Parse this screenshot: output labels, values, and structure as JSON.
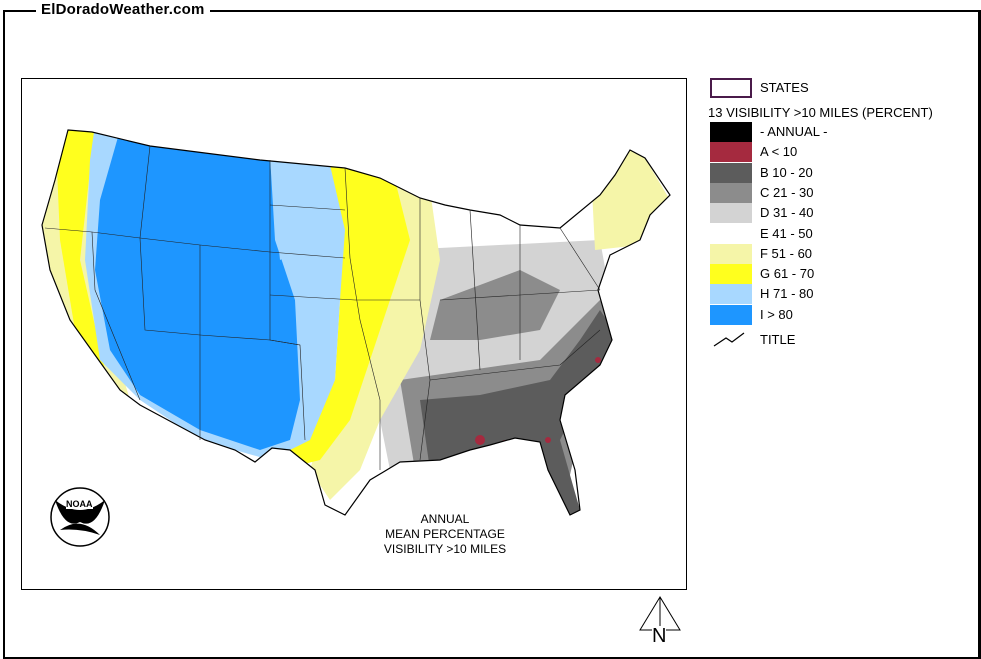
{
  "site_title": "ElDoradoWeather.com",
  "map": {
    "annotation": [
      "ANNUAL",
      "MEAN PERCENTAGE",
      "VISIBILITY >10 MILES"
    ],
    "logo_text": "NOAA",
    "north_label": "N"
  },
  "legend": {
    "states_label": "STATES",
    "states_border_color": "#4a1a4a",
    "heading": "13 VISIBILITY >10 MILES (PERCENT)",
    "items": [
      {
        "label": "- ANNUAL -",
        "color": "#000000"
      },
      {
        "label": "A < 10",
        "color": "#a52a3f"
      },
      {
        "label": "B 10 - 20",
        "color": "#5c5c5c"
      },
      {
        "label": "C 21 - 30",
        "color": "#8c8c8c"
      },
      {
        "label": "D 31 - 40",
        "color": "#d3d3d3"
      },
      {
        "label": "E 41 - 50",
        "color": "#ffffff"
      },
      {
        "label": "F 51 - 60",
        "color": "#f5f5a8"
      },
      {
        "label": "G 61 - 70",
        "color": "#ffff1e"
      },
      {
        "label": "H 71 - 80",
        "color": "#a8d8ff"
      },
      {
        "label": "I > 80",
        "color": "#1e96ff"
      }
    ],
    "title_label": "TITLE"
  }
}
